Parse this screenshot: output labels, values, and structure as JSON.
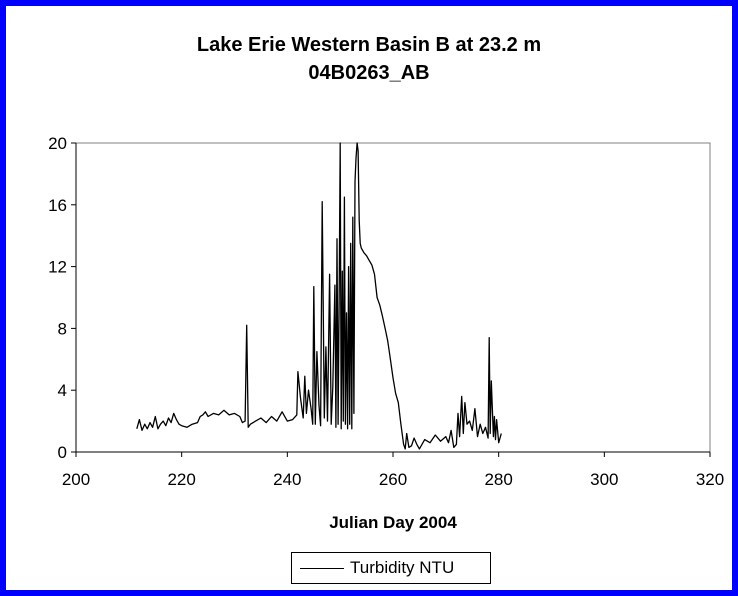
{
  "chart_data": {
    "type": "line",
    "title": "Lake Erie Western Basin B at 23.2 m",
    "subtitle": "04B0263_AB",
    "xlabel": "Julian Day 2004",
    "ylabel": "",
    "xlim": [
      200,
      320
    ],
    "ylim": [
      0,
      20
    ],
    "xticks": [
      "200",
      "220",
      "240",
      "260",
      "280",
      "300",
      "320"
    ],
    "yticks": [
      "0",
      "4",
      "8",
      "12",
      "16",
      "20"
    ],
    "grid": false,
    "legend_position": "bottom",
    "line_color": "#000000",
    "frame_color": "#0000FF",
    "series": [
      {
        "name": "Turbidity NTU",
        "x": [
          211.5,
          212,
          212.5,
          213,
          213.5,
          214,
          214.5,
          215,
          215.5,
          216,
          216.5,
          217,
          217.5,
          218,
          218.5,
          219,
          219.5,
          220,
          221,
          222,
          223,
          223.5,
          224,
          224.5,
          225,
          226,
          227,
          228,
          229,
          230,
          231,
          231.5,
          232,
          232.3,
          232.6,
          233,
          234,
          235,
          236,
          237,
          238,
          239,
          240,
          241,
          241.8,
          242,
          242.5,
          243,
          243.3,
          243.6,
          244,
          244.5,
          244.8,
          245,
          245.3,
          245.6,
          246,
          246.3,
          246.6,
          247,
          247.3,
          247.6,
          248,
          248.3,
          248.6,
          249,
          249.2,
          249.4,
          249.6,
          249.8,
          250,
          250.2,
          250.4,
          250.6,
          250.8,
          251,
          251.2,
          251.4,
          251.6,
          251.8,
          252,
          252.2,
          252.4,
          252.6,
          252.8,
          253,
          253.2,
          253.4,
          253.6,
          253.8,
          254,
          254.5,
          255,
          255.5,
          256,
          256.5,
          257,
          257.5,
          258,
          258.5,
          259,
          259.5,
          260,
          260.5,
          261,
          261.5,
          262,
          262.3,
          262.6,
          263,
          263.5,
          264,
          264.5,
          265,
          266,
          267,
          268,
          269,
          270,
          270.5,
          271,
          271.5,
          272,
          272.3,
          272.6,
          273,
          273.3,
          273.6,
          274,
          274.5,
          275,
          275.5,
          276,
          276.5,
          277,
          277.5,
          278,
          278.2,
          278.4,
          278.6,
          279,
          279.2,
          279.4,
          279.6,
          280,
          280.5
        ],
        "y": [
          1.5,
          2.1,
          1.4,
          1.8,
          1.5,
          1.9,
          1.6,
          2.3,
          1.5,
          1.8,
          2.0,
          1.7,
          2.2,
          1.9,
          2.5,
          2.1,
          1.8,
          1.7,
          1.6,
          1.8,
          1.9,
          2.3,
          2.4,
          2.6,
          2.3,
          2.5,
          2.4,
          2.7,
          2.4,
          2.5,
          2.3,
          1.9,
          2.0,
          8.2,
          1.6,
          1.8,
          2.0,
          2.2,
          1.9,
          2.3,
          2.0,
          2.6,
          2.0,
          2.1,
          2.4,
          5.2,
          3.5,
          2.2,
          4.9,
          2.5,
          4.0,
          2.8,
          1.8,
          10.7,
          1.8,
          6.5,
          3.0,
          1.7,
          16.2,
          2.2,
          6.8,
          2.0,
          11.5,
          1.8,
          4.2,
          10.8,
          1.6,
          13.8,
          1.8,
          9.5,
          20.0,
          1.5,
          11.7,
          2.0,
          16.5,
          1.8,
          9.0,
          1.5,
          12.0,
          1.8,
          13.5,
          1.5,
          15.2,
          2.5,
          17.5,
          19.0,
          20.0,
          19.5,
          15.0,
          13.5,
          13.2,
          12.9,
          12.7,
          12.4,
          12.1,
          11.5,
          10.0,
          9.5,
          8.8,
          8.0,
          7.2,
          6.0,
          4.8,
          3.8,
          3.2,
          1.8,
          0.5,
          0.2,
          1.2,
          0.3,
          0.4,
          0.9,
          0.5,
          0.2,
          0.8,
          0.6,
          1.1,
          0.7,
          1.0,
          0.6,
          1.4,
          0.3,
          0.5,
          2.5,
          1.0,
          3.6,
          1.2,
          3.2,
          1.8,
          2.0,
          1.4,
          2.8,
          1.0,
          1.8,
          1.2,
          1.6,
          0.9,
          7.4,
          1.2,
          4.6,
          1.0,
          2.3,
          0.8,
          2.1,
          0.6,
          1.2
        ]
      }
    ]
  }
}
